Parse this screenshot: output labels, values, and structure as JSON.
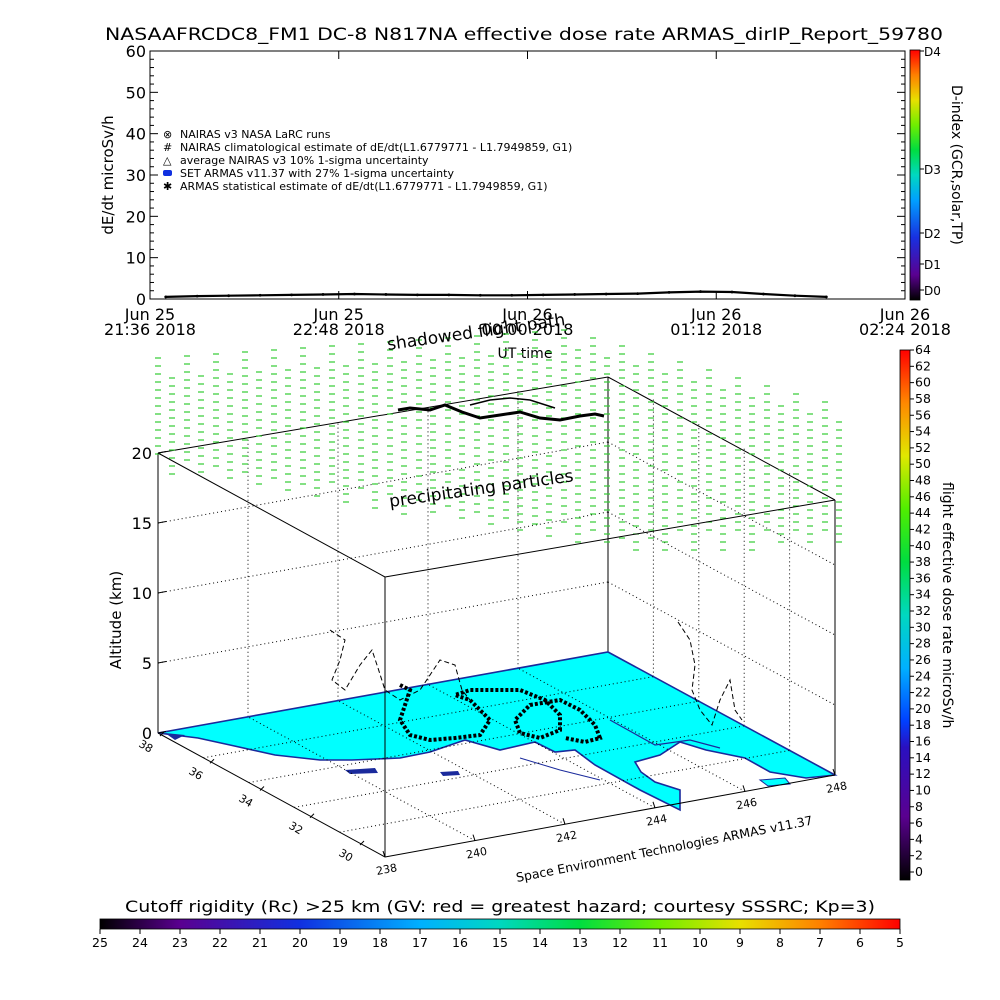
{
  "header": {
    "title": "NASAAFRCDC8_FM1 DC-8    N817NA effective dose rate ARMAS_dirIP_Report_59780"
  },
  "chart_data": [
    {
      "type": "line",
      "ylabel": "dE/dt microSv/h",
      "xlabel": "UT time",
      "ylim": [
        0,
        60
      ],
      "yticks": [
        "0",
        "10",
        "20",
        "30",
        "40",
        "50",
        "60"
      ],
      "xticks": [
        {
          "date": "Jun 25",
          "time": "21:36 2018"
        },
        {
          "date": "Jun 25",
          "time": "22:48 2018"
        },
        {
          "date": "Jun 26",
          "time": "00:00 2018"
        },
        {
          "date": "Jun 26",
          "time": "01:12 2018"
        },
        {
          "date": "Jun 26",
          "time": "02:24 2018"
        }
      ],
      "legend": [
        "NAIRAS v3 NASA LaRC runs",
        "NAIRAS climatological estimate of dE/dt(L1.6779771 - L1.7949859, G1)",
        "average NAIRAS v3 10% 1-sigma uncertainty",
        "SET ARMAS v11.37 with 27% 1-sigma uncertainty",
        "ARMAS statistical estimate of dE/dt(L1.6779771 - L1.7949859, G1)"
      ],
      "legend_placement": "upper-left",
      "series": [
        {
          "name": "SET ARMAS v11.37 with 27% 1-sigma uncertainty",
          "x": [
            "21:42",
            "21:54",
            "22:06",
            "22:18",
            "22:30",
            "22:42",
            "22:54",
            "23:06",
            "23:18",
            "23:30",
            "23:42",
            "23:54",
            "00:06",
            "00:18",
            "00:30",
            "00:42",
            "00:54",
            "01:06",
            "01:18",
            "01:30",
            "01:42",
            "01:54"
          ],
          "values": [
            0.5,
            0.7,
            0.8,
            0.9,
            1.0,
            1.1,
            1.2,
            1.1,
            1.0,
            1.0,
            0.9,
            0.9,
            1.0,
            1.1,
            1.2,
            1.3,
            1.6,
            1.8,
            1.7,
            1.2,
            0.8,
            0.5
          ]
        }
      ],
      "colorbar": {
        "label": "D-index (GCR,solar,TP)",
        "ticks": [
          "D0",
          "D1",
          "D2",
          "D3",
          "D4"
        ]
      }
    },
    {
      "type": "scatter",
      "ylabel": "Altitude (km)",
      "zticks": [
        "0",
        "5",
        "10",
        "15",
        "20"
      ],
      "xticks": [
        "238",
        "240",
        "242",
        "244",
        "246",
        "248"
      ],
      "yticks": [
        "30",
        "32",
        "34",
        "36",
        "38"
      ],
      "annotations": [
        "shadowed flight path",
        "precipitating particles"
      ],
      "credit": "Space Environment Technologies ARMAS v11.37",
      "colorbar": {
        "label": "flight effective dose rate microSv/h",
        "min": 0,
        "max": 64,
        "ticks": [
          "0",
          "2",
          "4",
          "6",
          "8",
          "10",
          "12",
          "14",
          "16",
          "18",
          "20",
          "22",
          "24",
          "26",
          "28",
          "30",
          "32",
          "34",
          "36",
          "38",
          "40",
          "42",
          "44",
          "46",
          "48",
          "50",
          "52",
          "54",
          "56",
          "58",
          "60",
          "62",
          "64"
        ]
      },
      "cutoff_colorbar": {
        "label": "Cutoff rigidity (Rc) >25 km (GV: red = greatest hazard; courtesy SSSRC; Kp=3)",
        "ticks": [
          "25",
          "24",
          "23",
          "22",
          "21",
          "20",
          "19",
          "18",
          "17",
          "16",
          "15",
          "14",
          "13",
          "12",
          "11",
          "10",
          "9",
          "8",
          "7",
          "6",
          "5"
        ]
      },
      "colors": {
        "map_fill": "#00ffff",
        "coast": "#1a2a9c",
        "particles": "#33cc33",
        "flight_track": "#000000"
      }
    }
  ]
}
